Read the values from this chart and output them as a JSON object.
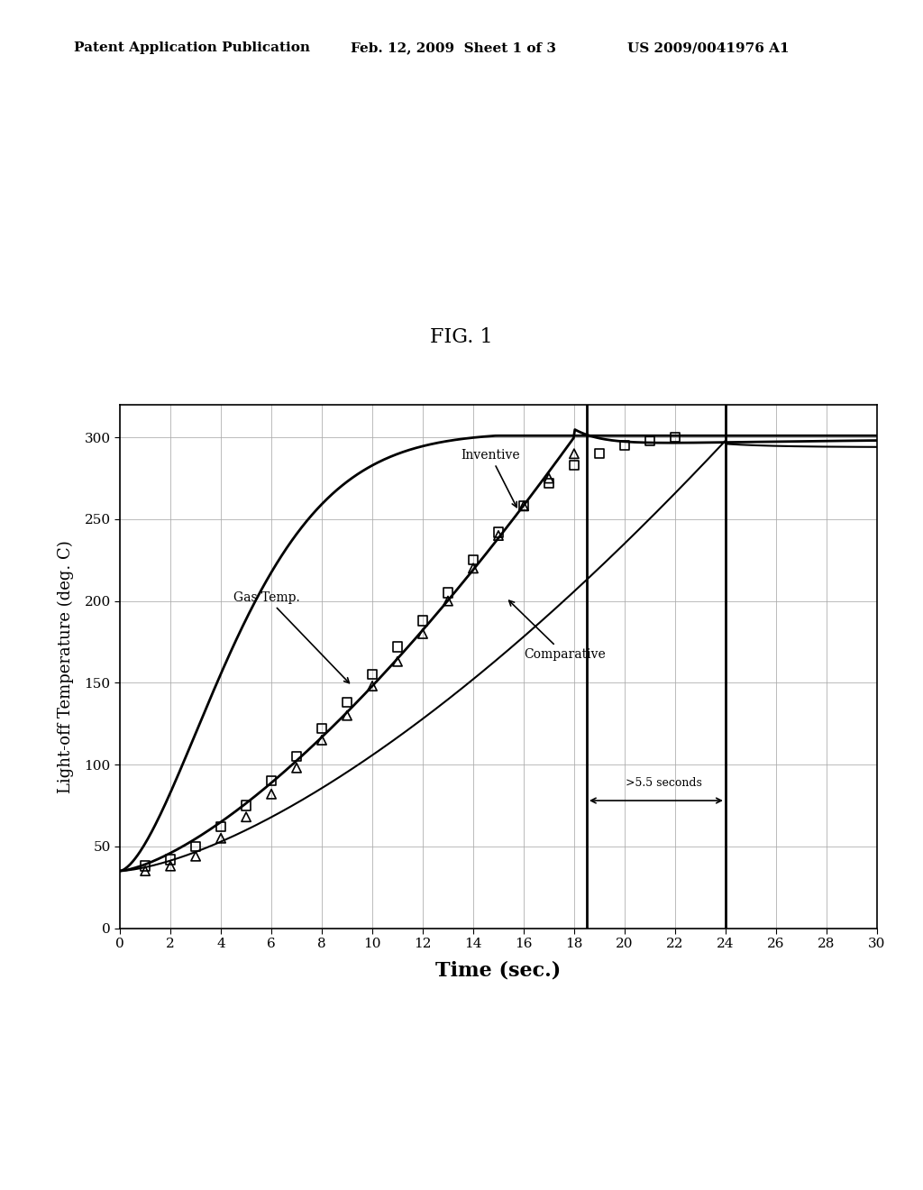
{
  "title": "FIG. 1",
  "xlabel": "Time (sec.)",
  "ylabel": "Light-off Temperature (deg. C)",
  "header_left": "Patent Application Publication",
  "header_center": "Feb. 12, 2009  Sheet 1 of 3",
  "header_right": "US 2009/0041976 A1",
  "xlim": [
    0,
    30
  ],
  "ylim": [
    0,
    320
  ],
  "xticks": [
    0,
    2,
    4,
    6,
    8,
    10,
    12,
    14,
    16,
    18,
    20,
    22,
    24,
    26,
    28,
    30
  ],
  "yticks": [
    0,
    50,
    100,
    150,
    200,
    250,
    300
  ],
  "vline1_x": 18.5,
  "vline2_x": 24.0,
  "annotation_55sec": ">5.5 seconds",
  "annotation_gasTemp": "Gas Temp.",
  "annotation_inventive": "Inventive",
  "annotation_comparative": "Comparative",
  "background_color": "#ffffff",
  "grid_color": "#aaaaaa",
  "t_tri": [
    1,
    2,
    3,
    4,
    5,
    6,
    7,
    8,
    9,
    10,
    11,
    12,
    13,
    14,
    15,
    16,
    17,
    18
  ],
  "y_tri": [
    35,
    38,
    44,
    55,
    68,
    82,
    98,
    115,
    130,
    148,
    163,
    180,
    200,
    220,
    240,
    258,
    275,
    290
  ],
  "t_sq": [
    1,
    2,
    3,
    4,
    5,
    6,
    7,
    8,
    9,
    10,
    11,
    12,
    13,
    14,
    15,
    16,
    17,
    18,
    19,
    20,
    21,
    22
  ],
  "y_sq": [
    38,
    42,
    50,
    62,
    75,
    90,
    105,
    122,
    138,
    155,
    172,
    188,
    205,
    225,
    242,
    258,
    272,
    283,
    290,
    295,
    298,
    300
  ]
}
